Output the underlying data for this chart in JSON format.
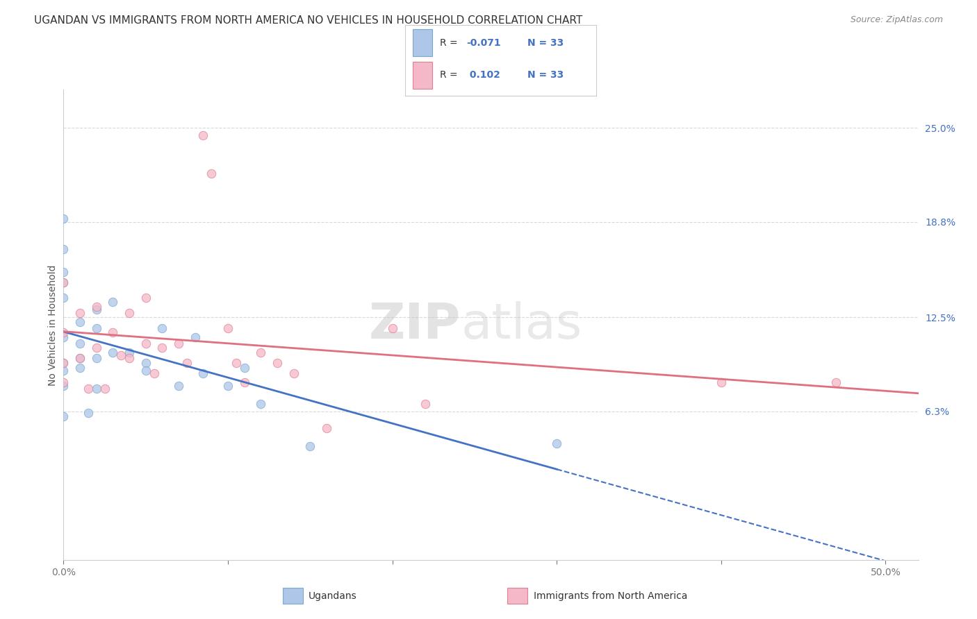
{
  "title": "UGANDAN VS IMMIGRANTS FROM NORTH AMERICA NO VEHICLES IN HOUSEHOLD CORRELATION CHART",
  "source": "Source: ZipAtlas.com",
  "ylabel": "No Vehicles in Household",
  "xlim": [
    0.0,
    0.52
  ],
  "ylim": [
    -0.035,
    0.275
  ],
  "ytick_right_labels": [
    "25.0%",
    "18.8%",
    "12.5%",
    "6.3%"
  ],
  "ytick_right_values": [
    0.25,
    0.188,
    0.125,
    0.063
  ],
  "ugandan_x": [
    0.0,
    0.0,
    0.0,
    0.0,
    0.0,
    0.0,
    0.0,
    0.0,
    0.0,
    0.0,
    0.01,
    0.01,
    0.01,
    0.01,
    0.015,
    0.02,
    0.02,
    0.02,
    0.02,
    0.03,
    0.03,
    0.04,
    0.05,
    0.05,
    0.06,
    0.07,
    0.08,
    0.085,
    0.1,
    0.11,
    0.12,
    0.15,
    0.3
  ],
  "ugandan_y": [
    0.19,
    0.17,
    0.155,
    0.148,
    0.138,
    0.112,
    0.095,
    0.09,
    0.08,
    0.06,
    0.122,
    0.108,
    0.098,
    0.092,
    0.062,
    0.13,
    0.118,
    0.098,
    0.078,
    0.135,
    0.102,
    0.102,
    0.095,
    0.09,
    0.118,
    0.08,
    0.112,
    0.088,
    0.08,
    0.092,
    0.068,
    0.04,
    0.042
  ],
  "ugandan_color": "#aec6e8",
  "ugandan_edge": "#7aa8d0",
  "immigrant_x": [
    0.0,
    0.0,
    0.0,
    0.0,
    0.01,
    0.01,
    0.015,
    0.02,
    0.02,
    0.025,
    0.03,
    0.035,
    0.04,
    0.04,
    0.05,
    0.05,
    0.055,
    0.06,
    0.07,
    0.075,
    0.085,
    0.09,
    0.1,
    0.105,
    0.11,
    0.12,
    0.13,
    0.14,
    0.16,
    0.2,
    0.22,
    0.4,
    0.47
  ],
  "immigrant_y": [
    0.148,
    0.115,
    0.095,
    0.082,
    0.128,
    0.098,
    0.078,
    0.132,
    0.105,
    0.078,
    0.115,
    0.1,
    0.128,
    0.098,
    0.138,
    0.108,
    0.088,
    0.105,
    0.108,
    0.095,
    0.245,
    0.22,
    0.118,
    0.095,
    0.082,
    0.102,
    0.095,
    0.088,
    0.052,
    0.118,
    0.068,
    0.082,
    0.082
  ],
  "immigrant_color": "#f4b8c8",
  "immigrant_edge": "#e08090",
  "ug_line_color": "#4472c4",
  "im_line_color": "#e07080",
  "scatter_size": 80,
  "scatter_alpha": 0.75,
  "watermark_zip_color": "#c8c8c8",
  "watermark_atlas_color": "#c8c8c8",
  "background_color": "#ffffff",
  "grid_color": "#d8d8d8",
  "right_tick_color": "#4472c4",
  "title_fontsize": 11,
  "source_fontsize": 9
}
